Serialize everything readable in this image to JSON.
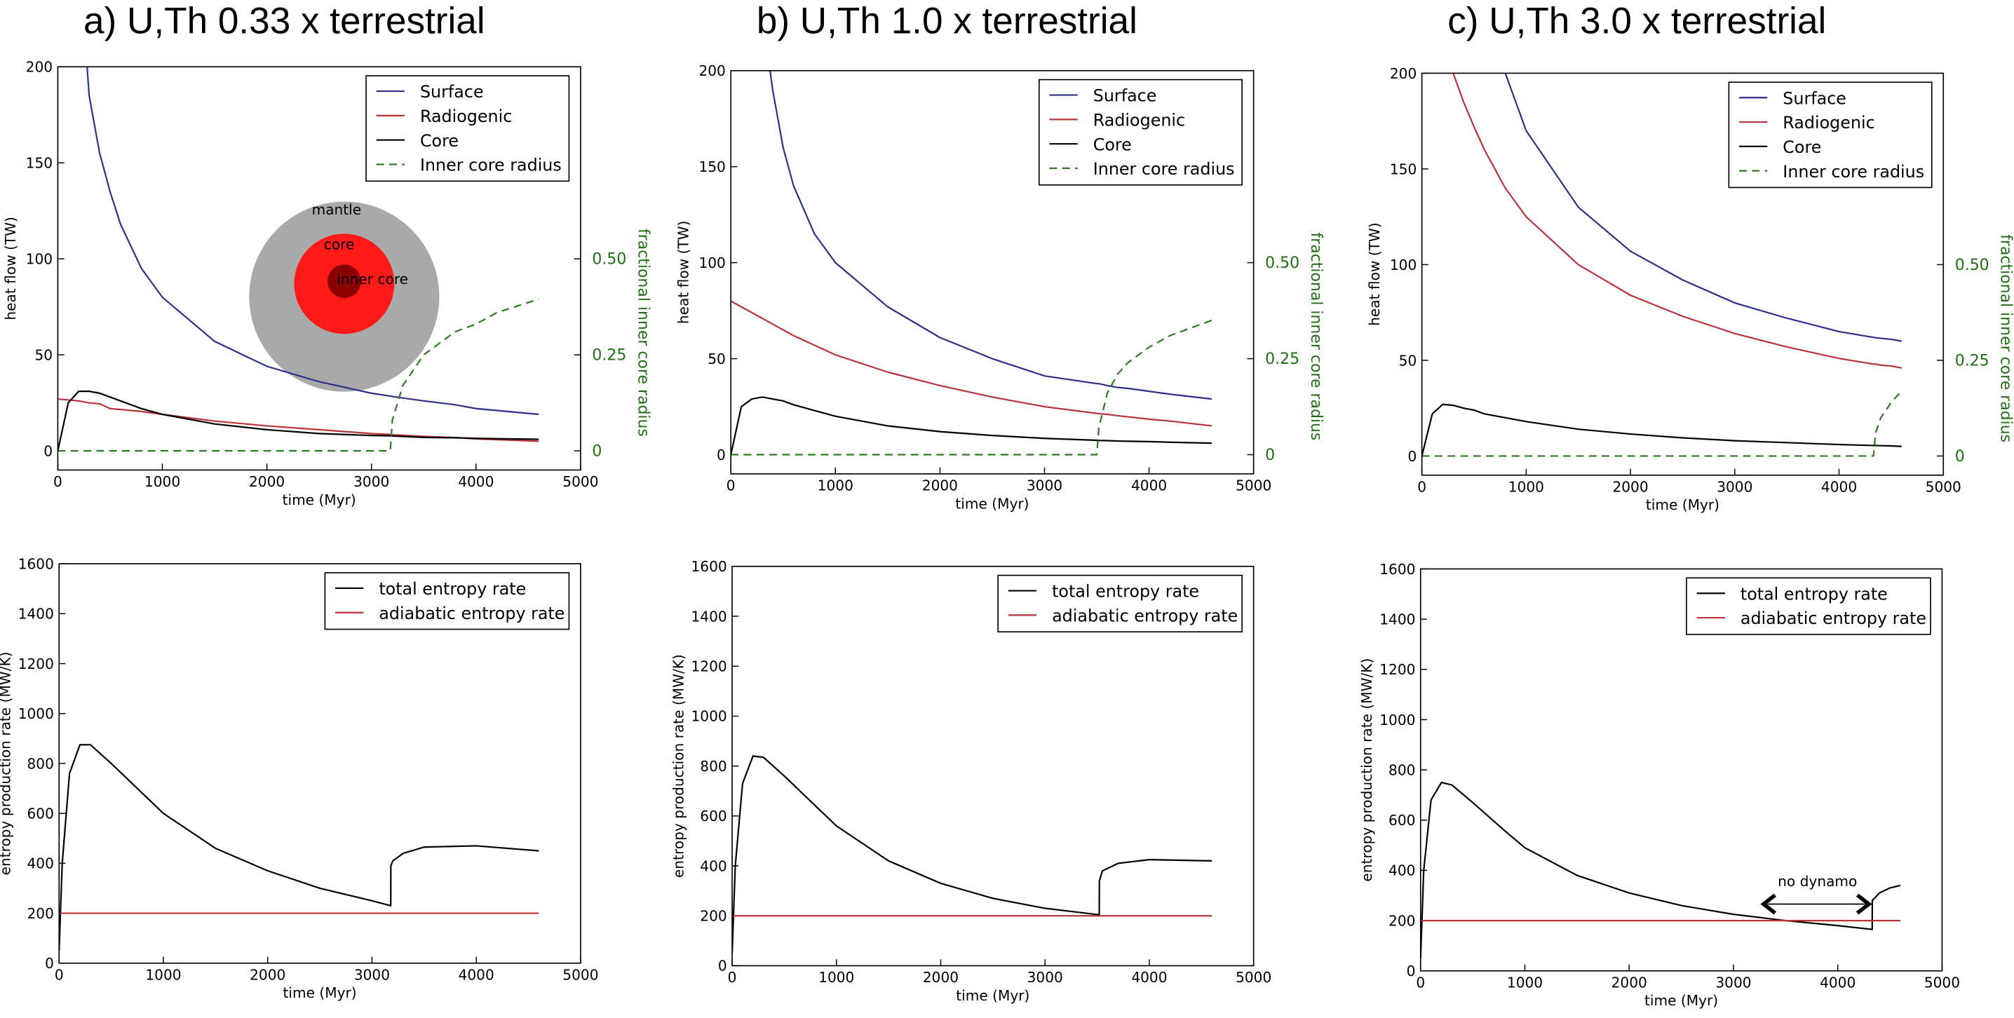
{
  "chart_data": [
    {
      "type": "line",
      "title": "a) U,Th 0.33 x terrestrial",
      "x_label": "time (Myr)",
      "y_label": "heat flow (TW)",
      "y2_label": "fractional inner core radius",
      "xlim": [
        0,
        5000
      ],
      "xticks": [
        0,
        1000,
        2000,
        3000,
        4000,
        5000
      ],
      "ylim": [
        -10,
        200
      ],
      "yticks": [
        0,
        50,
        100,
        150,
        200
      ],
      "y2lim": [
        -0.05,
        1.0
      ],
      "y2ticks": [
        0,
        0.25,
        {
          "value": 0.5,
          "label": "0.50"
        }
      ],
      "legend": "upper right",
      "inset_labels": [
        "mantle",
        "core",
        "inner core"
      ],
      "x": [
        0,
        100,
        200,
        300,
        400,
        500,
        600,
        800,
        1000,
        1500,
        2000,
        2500,
        3000,
        3180,
        3200,
        3300,
        3500,
        3800,
        4000,
        4200,
        4600
      ],
      "series": [
        {
          "name": "Surface",
          "color": "#2e2e8c",
          "values": [
            null,
            null,
            260,
            185,
            155,
            135,
            118,
            95,
            80,
            57,
            44,
            36,
            30,
            28.5,
            28.3,
            27.5,
            26,
            24,
            22,
            21,
            19
          ]
        },
        {
          "name": "Radiogenic",
          "color": "#b8333a",
          "values": [
            27,
            26.5,
            26,
            25,
            24.5,
            22,
            21.5,
            20.5,
            19,
            15.5,
            13,
            11,
            9,
            8.5,
            8.4,
            8.1,
            7.5,
            6.9,
            6.2,
            5.8,
            5
          ]
        },
        {
          "name": "Core",
          "color": "#000000",
          "values": [
            0,
            25,
            31,
            31,
            30,
            28,
            26,
            22,
            19,
            14,
            11,
            9,
            8,
            7.8,
            7.7,
            7.5,
            7,
            6.8,
            6.5,
            6.3,
            6
          ]
        },
        {
          "name": "Inner core radius",
          "color": "#2a7a1f",
          "style": "dashed",
          "axis": "y2",
          "values": [
            0,
            0,
            0,
            0,
            0,
            0,
            0,
            0,
            0,
            0,
            0,
            0,
            0,
            0,
            0.08,
            0.17,
            0.25,
            0.31,
            0.33,
            0.36,
            0.395
          ]
        }
      ]
    },
    {
      "type": "line",
      "title": "b) U,Th 1.0 x terrestrial",
      "x_label": "time (Myr)",
      "y_label": "heat flow (TW)",
      "y2_label": "fractional inner core radius",
      "xlim": [
        0,
        5000
      ],
      "xticks": [
        0,
        1000,
        2000,
        3000,
        4000,
        5000
      ],
      "ylim": [
        -10,
        200
      ],
      "yticks": [
        0,
        50,
        100,
        150,
        200
      ],
      "y2lim": [
        -0.05,
        1.0
      ],
      "y2ticks": [
        0,
        0.25,
        {
          "value": 0.5,
          "label": "0.50"
        }
      ],
      "legend": "upper right",
      "x": [
        0,
        100,
        200,
        300,
        400,
        500,
        600,
        800,
        1000,
        1500,
        2000,
        2500,
        3000,
        3500,
        3520,
        3600,
        3700,
        3800,
        4000,
        4200,
        4600
      ],
      "series": [
        {
          "name": "Surface",
          "color": "#2e2e8c",
          "values": [
            null,
            null,
            null,
            230,
            190,
            160,
            140,
            115,
            100,
            77,
            61,
            50,
            41,
            37,
            37,
            36,
            35,
            34.5,
            33,
            31.5,
            29
          ]
        },
        {
          "name": "Radiogenic",
          "color": "#b8333a",
          "values": [
            80,
            77,
            74,
            71,
            68,
            65,
            62,
            57,
            52,
            43,
            36,
            30,
            25,
            21.5,
            21.4,
            21,
            20.3,
            19.7,
            18.5,
            17.5,
            15
          ]
        },
        {
          "name": "Core",
          "color": "#000000",
          "values": [
            0,
            25,
            29,
            30,
            29,
            28,
            26,
            23,
            20,
            15,
            12,
            10,
            8.5,
            7.5,
            7.4,
            7.3,
            7.1,
            7,
            6.8,
            6.5,
            6
          ]
        },
        {
          "name": "Inner core radius",
          "color": "#2a7a1f",
          "style": "dashed",
          "axis": "y2",
          "values": [
            0,
            0,
            0,
            0,
            0,
            0,
            0,
            0,
            0,
            0,
            0,
            0,
            0,
            0,
            0.07,
            0.16,
            0.21,
            0.24,
            0.28,
            0.31,
            0.35
          ]
        }
      ]
    },
    {
      "type": "line",
      "title": "c) U,Th 3.0 x terrestrial",
      "x_label": "time (Myr)",
      "y_label": "heat flow (TW)",
      "y2_label": "fractional inner core radius",
      "xlim": [
        0,
        5000
      ],
      "xticks": [
        0,
        1000,
        2000,
        3000,
        4000,
        5000
      ],
      "ylim": [
        -10,
        200
      ],
      "yticks": [
        0,
        50,
        100,
        150,
        200
      ],
      "y2lim": [
        -0.05,
        1.0
      ],
      "y2ticks": [
        0,
        0.25,
        {
          "value": 0.5,
          "label": "0.50"
        }
      ],
      "legend": "upper right",
      "x": [
        0,
        100,
        200,
        300,
        400,
        500,
        600,
        800,
        1000,
        1500,
        2000,
        2500,
        3000,
        3500,
        4000,
        4330,
        4350,
        4400,
        4500,
        4600
      ],
      "series": [
        {
          "name": "Surface",
          "color": "#2e2e8c",
          "values": [
            null,
            null,
            null,
            null,
            null,
            null,
            260,
            200,
            170,
            130,
            107,
            92,
            80,
            72,
            65,
            62,
            61.8,
            61.5,
            61,
            60
          ]
        },
        {
          "name": "Radiogenic",
          "color": "#b8333a",
          "values": [
            null,
            null,
            null,
            200,
            185,
            172,
            160,
            140,
            125,
            100,
            84,
            73,
            64,
            57,
            51,
            48,
            48,
            47.5,
            47,
            46
          ]
        },
        {
          "name": "Core",
          "color": "#000000",
          "values": [
            0,
            22,
            27,
            26.5,
            25,
            24,
            22,
            20,
            18,
            14,
            11.5,
            9.5,
            8,
            7,
            6,
            5.5,
            5.5,
            5.4,
            5.3,
            5
          ]
        },
        {
          "name": "Inner core radius",
          "color": "#2a7a1f",
          "style": "dashed",
          "axis": "y2",
          "values": [
            0,
            0,
            0,
            0,
            0,
            0,
            0,
            0,
            0,
            0,
            0,
            0,
            0,
            0,
            0,
            0,
            0.06,
            0.1,
            0.14,
            0.17
          ]
        }
      ]
    },
    {
      "type": "line",
      "x_label": "time (Myr)",
      "y_label": "entropy production rate (MW/K)",
      "xlim": [
        0,
        5000
      ],
      "xticks": [
        0,
        1000,
        2000,
        3000,
        4000,
        5000
      ],
      "ylim": [
        0,
        1600
      ],
      "yticks": [
        0,
        200,
        400,
        600,
        800,
        1000,
        1200,
        1400,
        1600
      ],
      "legend": "upper right",
      "x": [
        0,
        30,
        100,
        200,
        300,
        500,
        800,
        1000,
        1500,
        2000,
        2500,
        3000,
        3180,
        3181,
        3200,
        3300,
        3500,
        4000,
        4600
      ],
      "series": [
        {
          "name": "total entropy rate",
          "color": "#000000",
          "values": [
            50,
            400,
            760,
            875,
            875,
            800,
            680,
            600,
            460,
            370,
            300,
            250,
            230,
            390,
            410,
            440,
            465,
            470,
            450
          ]
        },
        {
          "name": "adiabatic entropy rate",
          "color": "#b8333a",
          "values": [
            200,
            200,
            200,
            200,
            200,
            200,
            200,
            200,
            200,
            200,
            200,
            200,
            200,
            200,
            200,
            200,
            200,
            200,
            200
          ]
        }
      ]
    },
    {
      "type": "line",
      "x_label": "time (Myr)",
      "y_label": "entropy production rate (MW/K)",
      "xlim": [
        0,
        5000
      ],
      "xticks": [
        0,
        1000,
        2000,
        3000,
        4000,
        5000
      ],
      "ylim": [
        0,
        1600
      ],
      "yticks": [
        0,
        200,
        400,
        600,
        800,
        1000,
        1200,
        1400,
        1600
      ],
      "legend": "upper right",
      "x": [
        0,
        30,
        100,
        200,
        300,
        500,
        800,
        1000,
        1500,
        2000,
        2500,
        3000,
        3500,
        3520,
        3521,
        3550,
        3700,
        4000,
        4600
      ],
      "series": [
        {
          "name": "total entropy rate",
          "color": "#000000",
          "values": [
            50,
            400,
            730,
            840,
            835,
            760,
            640,
            560,
            420,
            330,
            270,
            230,
            205,
            205,
            340,
            380,
            410,
            425,
            420
          ]
        },
        {
          "name": "adiabatic entropy rate",
          "color": "#b8333a",
          "values": [
            200,
            200,
            200,
            200,
            200,
            200,
            200,
            200,
            200,
            200,
            200,
            200,
            200,
            200,
            200,
            200,
            200,
            200,
            200
          ]
        }
      ]
    },
    {
      "type": "line",
      "x_label": "time (Myr)",
      "y_label": "entropy production rate (MW/K)",
      "annotation": "no dynamo",
      "xlim": [
        0,
        5000
      ],
      "xticks": [
        0,
        1000,
        2000,
        3000,
        4000,
        5000
      ],
      "ylim": [
        0,
        1600
      ],
      "yticks": [
        0,
        200,
        400,
        600,
        800,
        1000,
        1200,
        1400,
        1600
      ],
      "legend": "upper right",
      "x": [
        0,
        30,
        100,
        200,
        300,
        500,
        800,
        1000,
        1500,
        2000,
        2500,
        3000,
        3500,
        4000,
        4330,
        4331,
        4400,
        4500,
        4600
      ],
      "series": [
        {
          "name": "total entropy rate",
          "color": "#000000",
          "values": [
            50,
            400,
            680,
            750,
            740,
            670,
            560,
            490,
            380,
            310,
            260,
            225,
            200,
            180,
            165,
            280,
            310,
            330,
            340
          ]
        },
        {
          "name": "adiabatic entropy rate",
          "color": "#b8333a",
          "values": [
            200,
            200,
            200,
            200,
            200,
            200,
            200,
            200,
            200,
            200,
            200,
            200,
            200,
            200,
            200,
            200,
            200,
            200,
            200
          ]
        }
      ]
    }
  ]
}
